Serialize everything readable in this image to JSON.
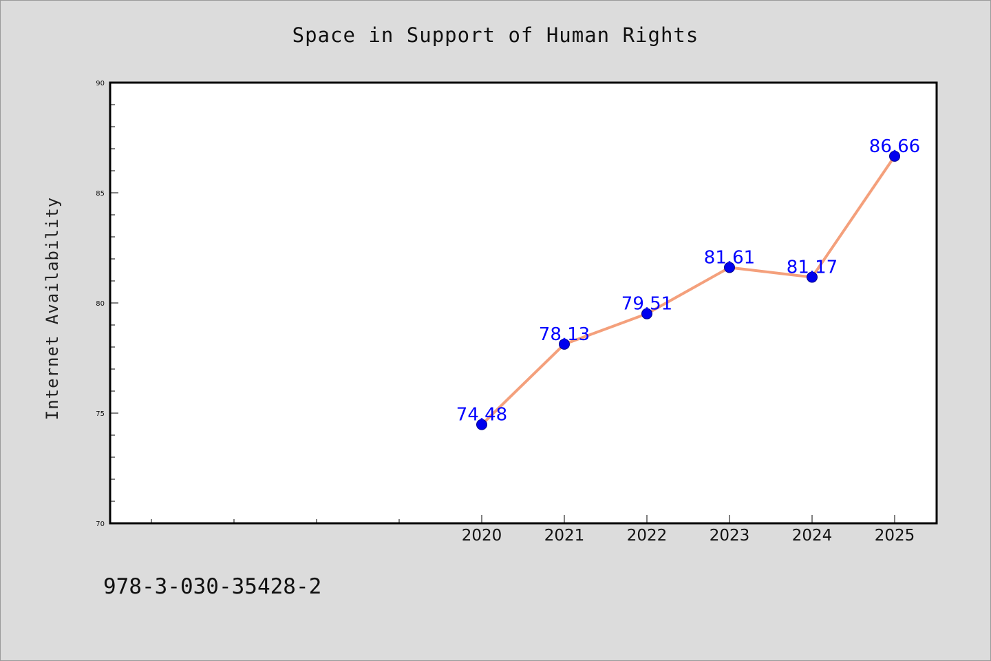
{
  "chart_data": {
    "type": "line",
    "title": "Space in Support of Human Rights",
    "ylabel": "Internet Availability",
    "xlabel": "",
    "x": [
      "2020",
      "2021",
      "2022",
      "2023",
      "2024",
      "2025"
    ],
    "series": [
      {
        "values": [
          74.48,
          78.13,
          79.51,
          81.61,
          81.17,
          86.66
        ],
        "data_labels": [
          "74.48",
          "78.13",
          "79.51",
          "81.61",
          "81.17",
          "86.66"
        ]
      }
    ],
    "ylim": [
      70,
      90
    ],
    "y_ticks": [
      70,
      75,
      80,
      85,
      90
    ],
    "y_tick_labels": [
      "70",
      "75",
      "80",
      "85",
      "90"
    ],
    "x_slots": 10,
    "x_first_data_slot": 4,
    "grid": false,
    "legend": "none",
    "colors": {
      "line": "#f4a07c",
      "marker": "#0000ee",
      "marker_edge": "#00008b",
      "data_label": "#0000ff",
      "background": "#dcdcdc",
      "plot_area": "#ffffff"
    }
  },
  "footer": {
    "text": "978-3-030-35428-2"
  }
}
